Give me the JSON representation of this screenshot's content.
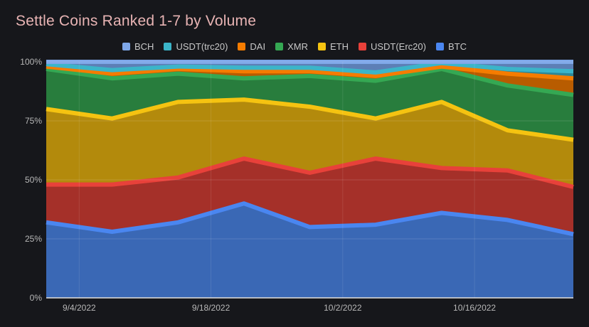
{
  "chart_data": {
    "type": "area",
    "stacked": true,
    "normalized": true,
    "title": "Settle Coins Ranked 1-7 by Volume",
    "xlabel": "",
    "ylabel": "",
    "ylim": [
      0,
      100
    ],
    "y_ticks": [
      0,
      25,
      50,
      75,
      100
    ],
    "y_tick_suffix": "%",
    "x": [
      0,
      1,
      2,
      3,
      4,
      5,
      6,
      7,
      8
    ],
    "x_tick_positions": [
      0.5,
      2.5,
      4.5,
      6.5
    ],
    "x_tick_labels": [
      "9/4/2022",
      "9/18/2022",
      "10/2/2022",
      "10/16/2022"
    ],
    "legend_position": "top-center",
    "grid": true,
    "series": [
      {
        "name": "BTC",
        "color": "#4a86f0",
        "fill": "#3a68b5",
        "values": [
          32,
          28,
          32,
          40,
          30,
          31,
          36,
          33,
          27
        ]
      },
      {
        "name": "USDT(Erc20)",
        "color": "#e8413a",
        "fill": "#a53029",
        "values": [
          16,
          20,
          19,
          19,
          23,
          28,
          19,
          21,
          20
        ]
      },
      {
        "name": "ETH",
        "color": "#f5c311",
        "fill": "#b38a0c",
        "values": [
          32,
          28,
          32,
          25,
          28,
          17,
          28,
          17,
          20
        ]
      },
      {
        "name": "XMR",
        "color": "#35a853",
        "fill": "#287d3d",
        "values": [
          17,
          17,
          12,
          9,
          13,
          16,
          14,
          19,
          19
        ]
      },
      {
        "name": "DAI",
        "color": "#f57c00",
        "fill": "#b85c00",
        "values": [
          1,
          2,
          2,
          3,
          2,
          2,
          1,
          5,
          7
        ]
      },
      {
        "name": "USDT(trc20)",
        "color": "#3bb5c9",
        "fill": "#2d8797",
        "values": [
          1,
          1.5,
          1,
          1.5,
          1.5,
          1.5,
          1.5,
          2,
          3
        ]
      },
      {
        "name": "BCH",
        "color": "#7ea7e8",
        "fill": "#5d7fb6",
        "values": [
          1,
          3.5,
          2,
          2.5,
          2.5,
          4.5,
          0.5,
          3,
          4
        ]
      }
    ]
  }
}
